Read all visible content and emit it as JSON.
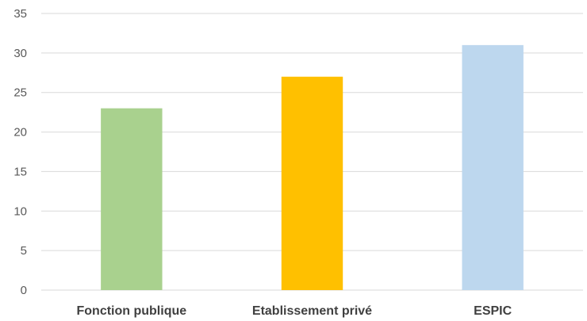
{
  "chart_data": {
    "type": "bar",
    "title": "",
    "xlabel": "",
    "ylabel": "",
    "categories": [
      "Fonction publique",
      "Etablissement privé",
      "ESPIC"
    ],
    "values": [
      23,
      27,
      31
    ],
    "colors": [
      "#a9d18e",
      "#ffc000",
      "#bdd7ee"
    ],
    "ylim": [
      0,
      35
    ],
    "yticks": [
      0,
      5,
      10,
      15,
      20,
      25,
      30,
      35
    ],
    "ytick_labels": [
      "0",
      "5",
      "10",
      "15",
      "20",
      "25",
      "30",
      "35"
    ],
    "grid": true,
    "legend": "none"
  }
}
